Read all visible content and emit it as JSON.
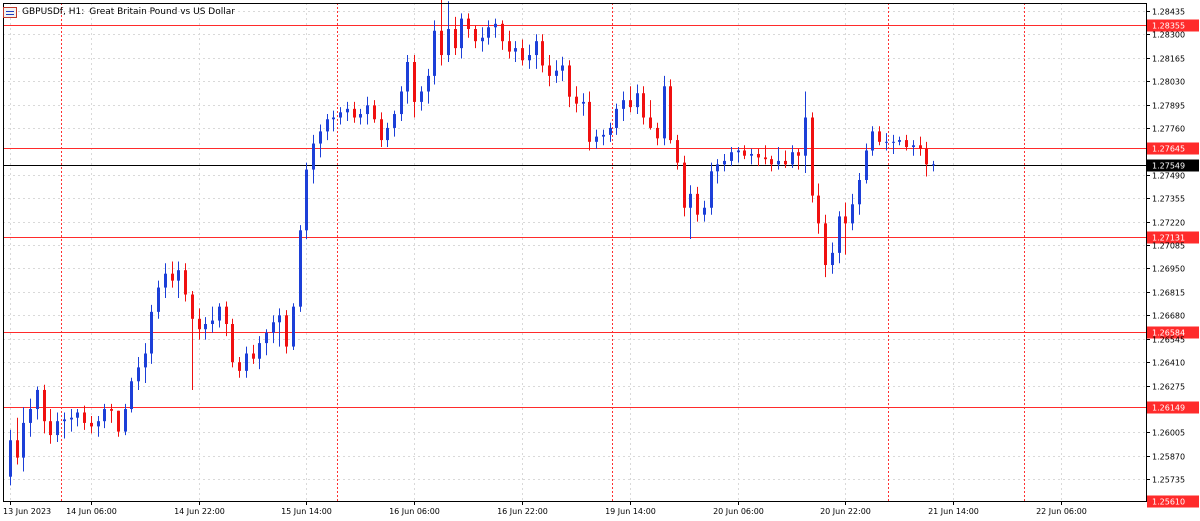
{
  "title": {
    "symbol": "GBPUSDf, H1:",
    "description": "Great Britain Pound vs US Dollar"
  },
  "colors": {
    "background": "#ffffff",
    "bull": "#1c3fd8",
    "bear": "#f01010",
    "grid": "#d9d9d9",
    "level_line": "#ff2b2b",
    "separator": "#ff3030",
    "current_line": "#000000",
    "axis_text": "#000000"
  },
  "chart_data": {
    "type": "candlestick",
    "symbol": "GBPUSDf",
    "timeframe": "H1",
    "ylim": [
      1.2561,
      1.2848
    ],
    "y_ticks": [
      "1.28435",
      "1.28300",
      "1.28165",
      "1.28030",
      "1.27895",
      "1.27760",
      "1.27490",
      "1.27355",
      "1.27220",
      "1.27085",
      "1.26950",
      "1.26815",
      "1.26680",
      "1.26545",
      "1.26410",
      "1.26275",
      "1.26005",
      "1.25870",
      "1.25735"
    ],
    "x_ticks": [
      "13 Jun 2023",
      "14 Jun 06:00",
      "14 Jun 22:00",
      "15 Jun 14:00",
      "16 Jun 06:00",
      "16 Jun 22:00",
      "19 Jun 14:00",
      "20 Jun 06:00",
      "20 Jun 22:00",
      "21 Jun 14:00",
      "22 Jun 06:00"
    ],
    "levels": [
      {
        "label": "1.28355",
        "value": 1.28355
      },
      {
        "label": "1.27645",
        "value": 1.27645
      },
      {
        "label": "1.27131",
        "value": 1.27131
      },
      {
        "label": "1.26584",
        "value": 1.26584
      },
      {
        "label": "1.26149",
        "value": 1.26149
      },
      {
        "label": "1.25610",
        "value": 1.2561
      }
    ],
    "current": {
      "label": "1.27549",
      "value": 1.27549
    },
    "ohlc": [
      [
        1.2575,
        1.2602,
        1.257,
        1.2596
      ],
      [
        1.2596,
        1.2609,
        1.2582,
        1.2586
      ],
      [
        1.2586,
        1.2615,
        1.2578,
        1.2606
      ],
      [
        1.2606,
        1.262,
        1.2598,
        1.2614
      ],
      [
        1.2614,
        1.2627,
        1.2608,
        1.2625
      ],
      [
        1.2625,
        1.2628,
        1.26,
        1.2607
      ],
      [
        1.2607,
        1.2614,
        1.2594,
        1.2599
      ],
      [
        1.2599,
        1.2612,
        1.2595,
        1.2607
      ],
      [
        1.2607,
        1.2612,
        1.2597,
        1.2608
      ],
      [
        1.2608,
        1.2614,
        1.2601,
        1.2609
      ],
      [
        1.2609,
        1.2614,
        1.2604,
        1.2612
      ],
      [
        1.2612,
        1.2616,
        1.2602,
        1.2606
      ],
      [
        1.2606,
        1.261,
        1.26,
        1.2604
      ],
      [
        1.2604,
        1.261,
        1.2598,
        1.2607
      ],
      [
        1.2607,
        1.2617,
        1.2603,
        1.2614
      ],
      [
        1.2614,
        1.2617,
        1.2606,
        1.2613
      ],
      [
        1.2613,
        1.2613,
        1.2598,
        1.2601
      ],
      [
        1.2601,
        1.2617,
        1.2599,
        1.2614
      ],
      [
        1.2614,
        1.2632,
        1.2612,
        1.263
      ],
      [
        1.263,
        1.2644,
        1.2625,
        1.2638
      ],
      [
        1.2638,
        1.2652,
        1.2629,
        1.2646
      ],
      [
        1.2646,
        1.2674,
        1.264,
        1.267
      ],
      [
        1.267,
        1.2688,
        1.2666,
        1.2684
      ],
      [
        1.2684,
        1.2698,
        1.2678,
        1.2692
      ],
      [
        1.2692,
        1.2699,
        1.2684,
        1.2688
      ],
      [
        1.2688,
        1.2699,
        1.2678,
        1.2694
      ],
      [
        1.2694,
        1.2698,
        1.2676,
        1.268
      ],
      [
        1.268,
        1.2682,
        1.2625,
        1.2666
      ],
      [
        1.2666,
        1.2672,
        1.2654,
        1.266
      ],
      [
        1.266,
        1.2667,
        1.2654,
        1.2663
      ],
      [
        1.2663,
        1.2673,
        1.2658,
        1.2665
      ],
      [
        1.2665,
        1.2675,
        1.2661,
        1.2673
      ],
      [
        1.2673,
        1.2676,
        1.2656,
        1.2663
      ],
      [
        1.2663,
        1.2666,
        1.2638,
        1.2641
      ],
      [
        1.2641,
        1.2644,
        1.2632,
        1.2636
      ],
      [
        1.2636,
        1.265,
        1.2632,
        1.2646
      ],
      [
        1.2646,
        1.2651,
        1.264,
        1.2643
      ],
      [
        1.2643,
        1.2656,
        1.2637,
        1.2652
      ],
      [
        1.2652,
        1.266,
        1.2645,
        1.2658
      ],
      [
        1.2658,
        1.2668,
        1.2652,
        1.2664
      ],
      [
        1.2664,
        1.2672,
        1.265,
        1.2668
      ],
      [
        1.2668,
        1.2671,
        1.2646,
        1.265
      ],
      [
        1.265,
        1.2675,
        1.2648,
        1.2673
      ],
      [
        1.2673,
        1.272,
        1.267,
        1.2717
      ],
      [
        1.2717,
        1.2756,
        1.2712,
        1.2752
      ],
      [
        1.2752,
        1.2772,
        1.2744,
        1.2767
      ],
      [
        1.2767,
        1.2778,
        1.2759,
        1.2774
      ],
      [
        1.2774,
        1.2784,
        1.2769,
        1.2781
      ],
      [
        1.2781,
        1.2786,
        1.2774,
        1.2782
      ],
      [
        1.2782,
        1.2788,
        1.2778,
        1.2785
      ],
      [
        1.2785,
        1.2791,
        1.278,
        1.2787
      ],
      [
        1.2787,
        1.2791,
        1.2779,
        1.2782
      ],
      [
        1.2782,
        1.2787,
        1.2778,
        1.2784
      ],
      [
        1.2784,
        1.2794,
        1.2778,
        1.2789
      ],
      [
        1.2789,
        1.2792,
        1.2779,
        1.2781
      ],
      [
        1.2781,
        1.2785,
        1.2765,
        1.2769
      ],
      [
        1.2769,
        1.2779,
        1.2765,
        1.2776
      ],
      [
        1.2776,
        1.2786,
        1.2771,
        1.2784
      ],
      [
        1.2784,
        1.28,
        1.278,
        1.2797
      ],
      [
        1.2797,
        1.2818,
        1.279,
        1.2814
      ],
      [
        1.2814,
        1.2818,
        1.2782,
        1.2791
      ],
      [
        1.2791,
        1.28,
        1.2786,
        1.2797
      ],
      [
        1.2797,
        1.281,
        1.279,
        1.2806
      ],
      [
        1.2806,
        1.2838,
        1.2801,
        1.2832
      ],
      [
        1.2832,
        1.285,
        1.2812,
        1.2818
      ],
      [
        1.2818,
        1.2849,
        1.2814,
        1.2833
      ],
      [
        1.2833,
        1.284,
        1.2818,
        1.2822
      ],
      [
        1.2822,
        1.2842,
        1.2816,
        1.2839
      ],
      [
        1.2839,
        1.2842,
        1.2828,
        1.2833
      ],
      [
        1.2833,
        1.2835,
        1.2822,
        1.2826
      ],
      [
        1.2826,
        1.2834,
        1.282,
        1.2828
      ],
      [
        1.2828,
        1.2838,
        1.2824,
        1.2834
      ],
      [
        1.2834,
        1.2839,
        1.2828,
        1.2836
      ],
      [
        1.2836,
        1.2838,
        1.2821,
        1.2826
      ],
      [
        1.2826,
        1.2832,
        1.2816,
        1.282
      ],
      [
        1.282,
        1.2826,
        1.2814,
        1.2822
      ],
      [
        1.2822,
        1.2827,
        1.2812,
        1.2815
      ],
      [
        1.2815,
        1.2824,
        1.281,
        1.2818
      ],
      [
        1.2818,
        1.283,
        1.281,
        1.2826
      ],
      [
        1.2826,
        1.283,
        1.2808,
        1.2812
      ],
      [
        1.2812,
        1.2818,
        1.28,
        1.2806
      ],
      [
        1.2806,
        1.2815,
        1.2802,
        1.2809
      ],
      [
        1.2809,
        1.2817,
        1.2803,
        1.2812
      ],
      [
        1.2812,
        1.2815,
        1.2788,
        1.2794
      ],
      [
        1.2794,
        1.28,
        1.2785,
        1.279
      ],
      [
        1.279,
        1.2796,
        1.2783,
        1.2791
      ],
      [
        1.2791,
        1.2797,
        1.2763,
        1.2768
      ],
      [
        1.2768,
        1.2775,
        1.2764,
        1.2771
      ],
      [
        1.2771,
        1.2775,
        1.2766,
        1.2772
      ],
      [
        1.2772,
        1.2779,
        1.2768,
        1.2776
      ],
      [
        1.2776,
        1.279,
        1.2772,
        1.2787
      ],
      [
        1.2787,
        1.2797,
        1.278,
        1.2792
      ],
      [
        1.2792,
        1.28,
        1.2785,
        1.2788
      ],
      [
        1.2788,
        1.2801,
        1.2784,
        1.2796
      ],
      [
        1.2796,
        1.28,
        1.2778,
        1.2782
      ],
      [
        1.2782,
        1.2792,
        1.2775,
        1.2776
      ],
      [
        1.2776,
        1.2779,
        1.2766,
        1.277
      ],
      [
        1.277,
        1.2806,
        1.2766,
        1.28
      ],
      [
        1.28,
        1.2804,
        1.2767,
        1.2769
      ],
      [
        1.2769,
        1.2772,
        1.2752,
        1.2756
      ],
      [
        1.2756,
        1.276,
        1.2725,
        1.273
      ],
      [
        1.273,
        1.2743,
        1.2712,
        1.2738
      ],
      [
        1.2738,
        1.2742,
        1.2722,
        1.2726
      ],
      [
        1.2726,
        1.2734,
        1.2722,
        1.273
      ],
      [
        1.273,
        1.2756,
        1.2726,
        1.2751
      ],
      [
        1.2751,
        1.2758,
        1.2744,
        1.2755
      ],
      [
        1.2755,
        1.2761,
        1.2751,
        1.2757
      ],
      [
        1.2757,
        1.2765,
        1.2754,
        1.2762
      ],
      [
        1.2762,
        1.2765,
        1.2756,
        1.2763
      ],
      [
        1.2763,
        1.2766,
        1.2758,
        1.276
      ],
      [
        1.276,
        1.2764,
        1.2755,
        1.2761
      ],
      [
        1.2761,
        1.2764,
        1.2754,
        1.2759
      ],
      [
        1.2759,
        1.2766,
        1.2755,
        1.2758
      ],
      [
        1.2758,
        1.276,
        1.2751,
        1.2755
      ],
      [
        1.2755,
        1.2765,
        1.2752,
        1.2757
      ],
      [
        1.2757,
        1.2763,
        1.2753,
        1.2755
      ],
      [
        1.2755,
        1.2766,
        1.2753,
        1.2762
      ],
      [
        1.2762,
        1.2764,
        1.2752,
        1.276
      ],
      [
        1.276,
        1.2797,
        1.275,
        1.2782
      ],
      [
        1.2782,
        1.2785,
        1.2733,
        1.2737
      ],
      [
        1.2737,
        1.2744,
        1.2715,
        1.2721
      ],
      [
        1.2721,
        1.2726,
        1.269,
        1.2697
      ],
      [
        1.2697,
        1.271,
        1.2692,
        1.2704
      ],
      [
        1.2704,
        1.2728,
        1.2698,
        1.2725
      ],
      [
        1.2725,
        1.2733,
        1.2703,
        1.2721
      ],
      [
        1.2721,
        1.2738,
        1.2717,
        1.2732
      ],
      [
        1.2732,
        1.275,
        1.2726,
        1.2746
      ],
      [
        1.2746,
        1.2767,
        1.2744,
        1.2763
      ],
      [
        1.2763,
        1.2777,
        1.276,
        1.2774
      ],
      [
        1.2774,
        1.2777,
        1.2766,
        1.2768
      ],
      [
        1.2768,
        1.2773,
        1.2763,
        1.2768
      ],
      [
        1.2768,
        1.2772,
        1.2761,
        1.2768
      ],
      [
        1.2768,
        1.2771,
        1.2766,
        1.2769
      ],
      [
        1.2769,
        1.2772,
        1.2763,
        1.2765
      ],
      [
        1.2765,
        1.2769,
        1.276,
        1.2766
      ],
      [
        1.2766,
        1.2771,
        1.276,
        1.2764
      ],
      [
        1.2764,
        1.2768,
        1.2748,
        1.2755
      ],
      [
        1.2755,
        1.2757,
        1.2751,
        1.2755
      ]
    ]
  }
}
